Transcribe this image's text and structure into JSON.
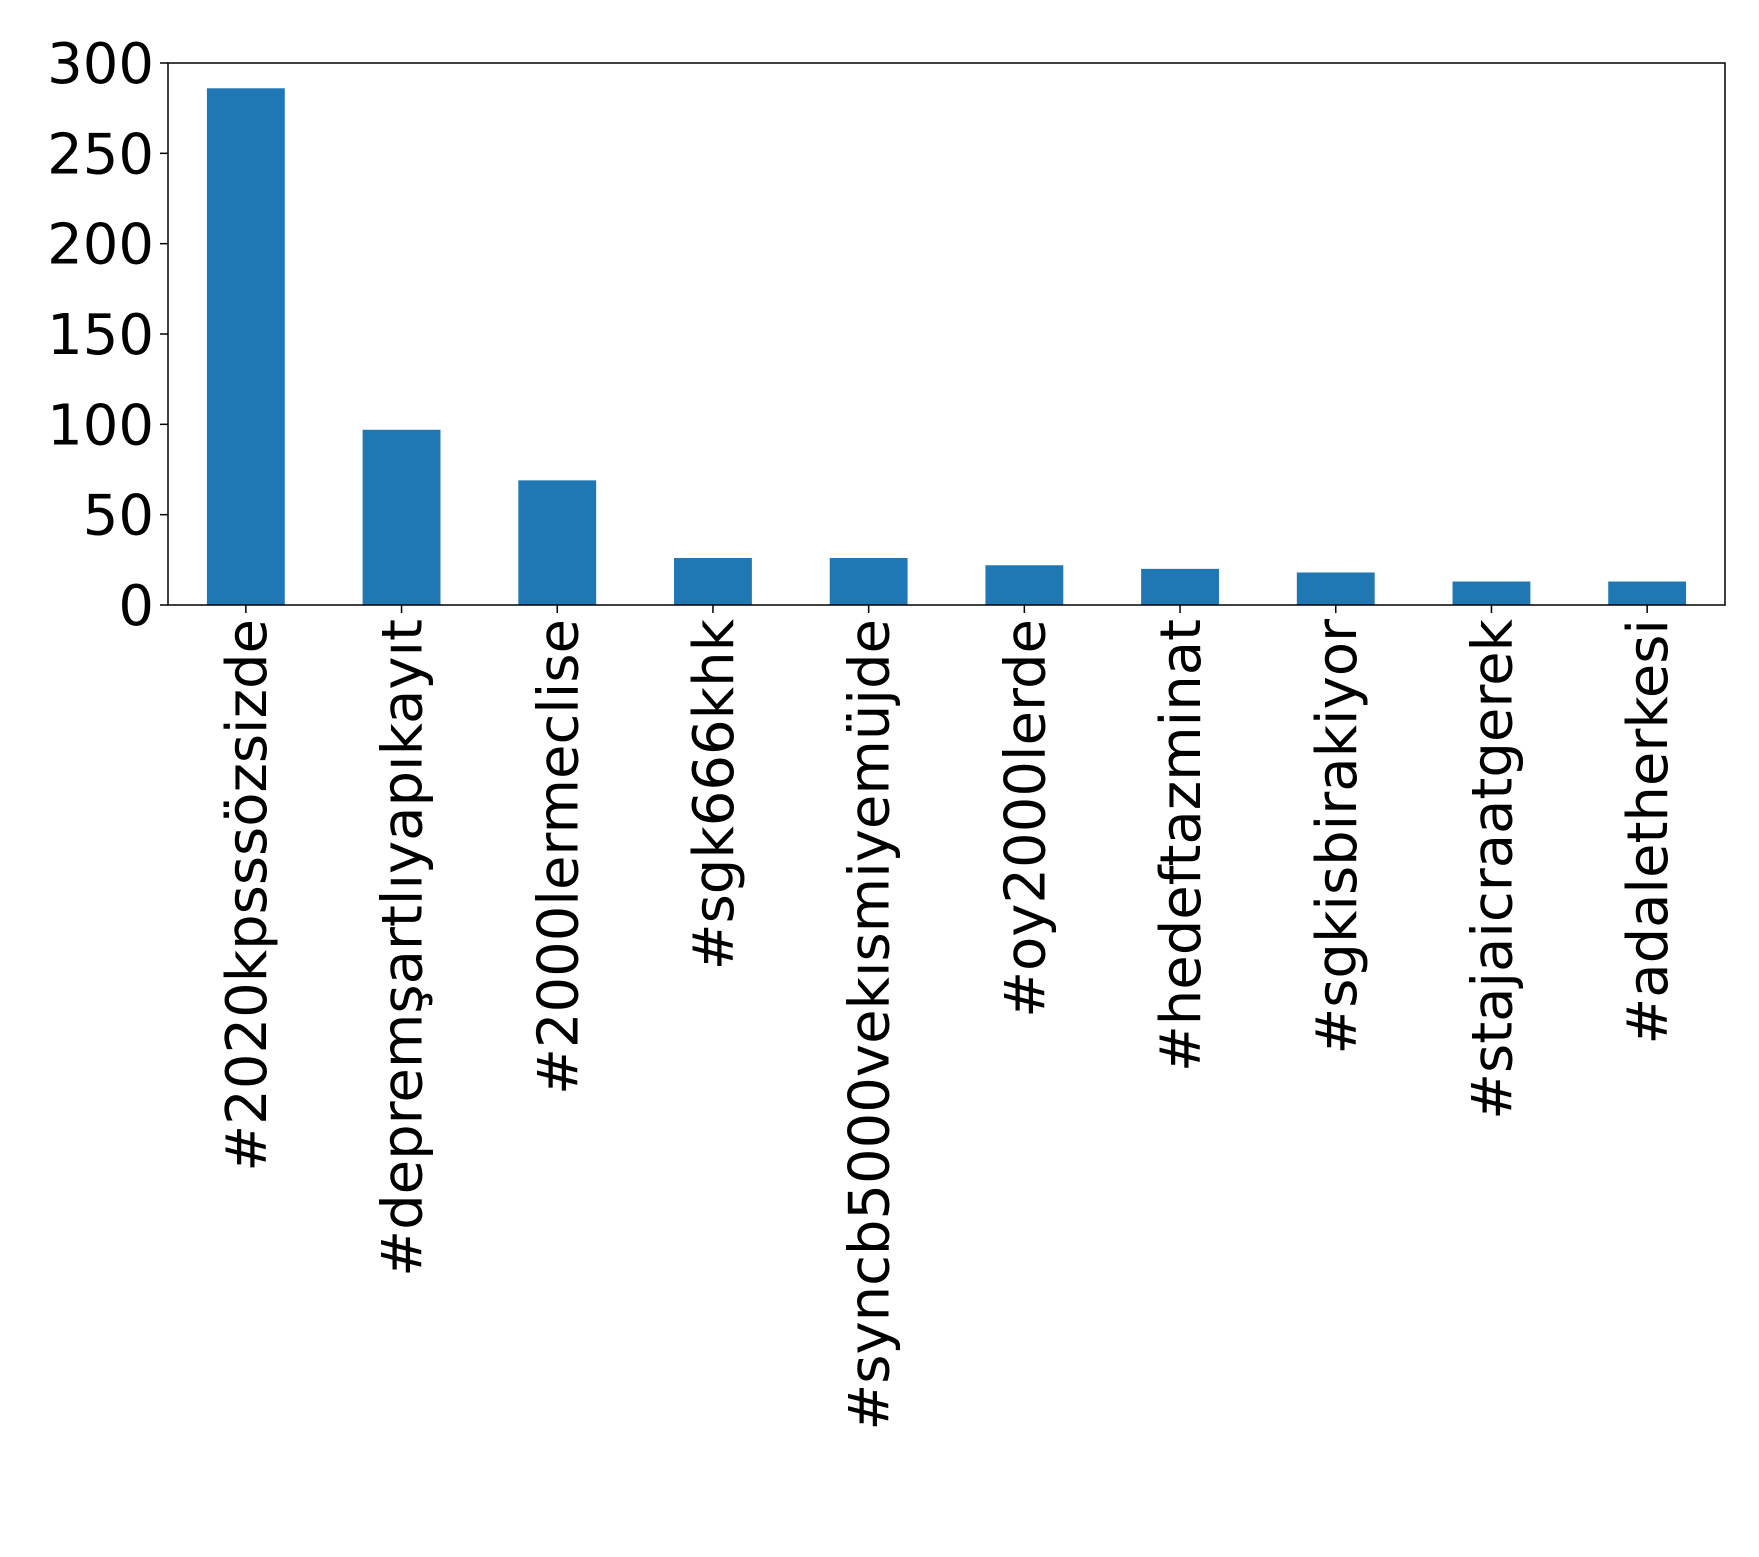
{
  "chart_data": {
    "type": "bar",
    "title": "",
    "xlabel": "",
    "ylabel": "",
    "categories": [
      "#2020kpsssözsizde",
      "#depremşartlıyapıkayıt",
      "#2000lermeclise",
      "#sgk666khk",
      "#syncb5000vekısmiyemüjde",
      "#oy2000lerde",
      "#hedeftazminat",
      "#sgkisbirakiyor",
      "#stajaicraatgerek",
      "#adaletherkesi"
    ],
    "values": [
      286,
      97,
      69,
      26,
      26,
      22,
      20,
      18,
      13,
      13
    ],
    "ylim": [
      0,
      300
    ],
    "yticks": [
      0,
      50,
      100,
      150,
      200,
      250,
      300
    ],
    "grid": false,
    "legend": "none",
    "colors": {
      "bar": "#1f77b4",
      "axis": "#000000",
      "background": "#ffffff"
    }
  }
}
